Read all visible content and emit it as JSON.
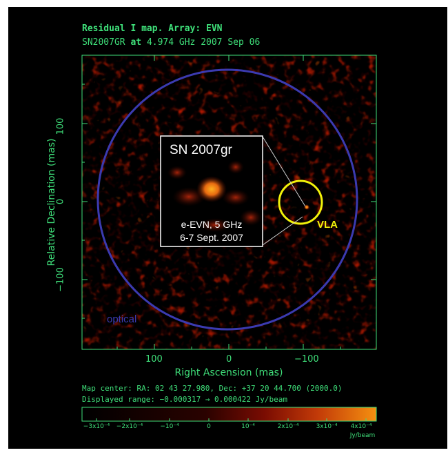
{
  "header": {
    "title_line1": "Residual I map.  Array:  EVN",
    "title_line2_src": "SN2007GR",
    "title_line2_at": "at",
    "title_line2_freq": "4.974 GHz 2007 Sep 06"
  },
  "axes": {
    "xlabel": "Right Ascension  (mas)",
    "ylabel": "Relative Declination  (mas)",
    "xticks": [
      "100",
      "0",
      "−100"
    ],
    "yticks": [
      "100",
      "0",
      "−100"
    ]
  },
  "inset": {
    "title": "SN 2007gr",
    "caption_line1": "e-EVN, 5 GHz",
    "caption_line2": "6-7 Sept. 2007"
  },
  "annotations": {
    "vla_label": "VLA",
    "optical_label": "optical"
  },
  "footer": {
    "map_center": "Map center:  RA: 02 43 27.980,  Dec: +37 20 44.700 (2000.0)",
    "displayed_range": "Displayed range: −0.000317 → 0.000422 Jy/beam",
    "units": "Jy/beam"
  },
  "colorbar": {
    "ticks": [
      "−3x10⁻⁴",
      "−2x10⁻⁴",
      "−10⁻⁴",
      "0",
      "10⁻⁴",
      "2x10⁻⁴",
      "3x10⁻⁴",
      "4x10⁻⁴"
    ]
  },
  "colors": {
    "label_green": "#3fe07a",
    "optical_circle": "#3b3ab0",
    "vla_circle": "#f2f20a",
    "background": "#000000"
  }
}
